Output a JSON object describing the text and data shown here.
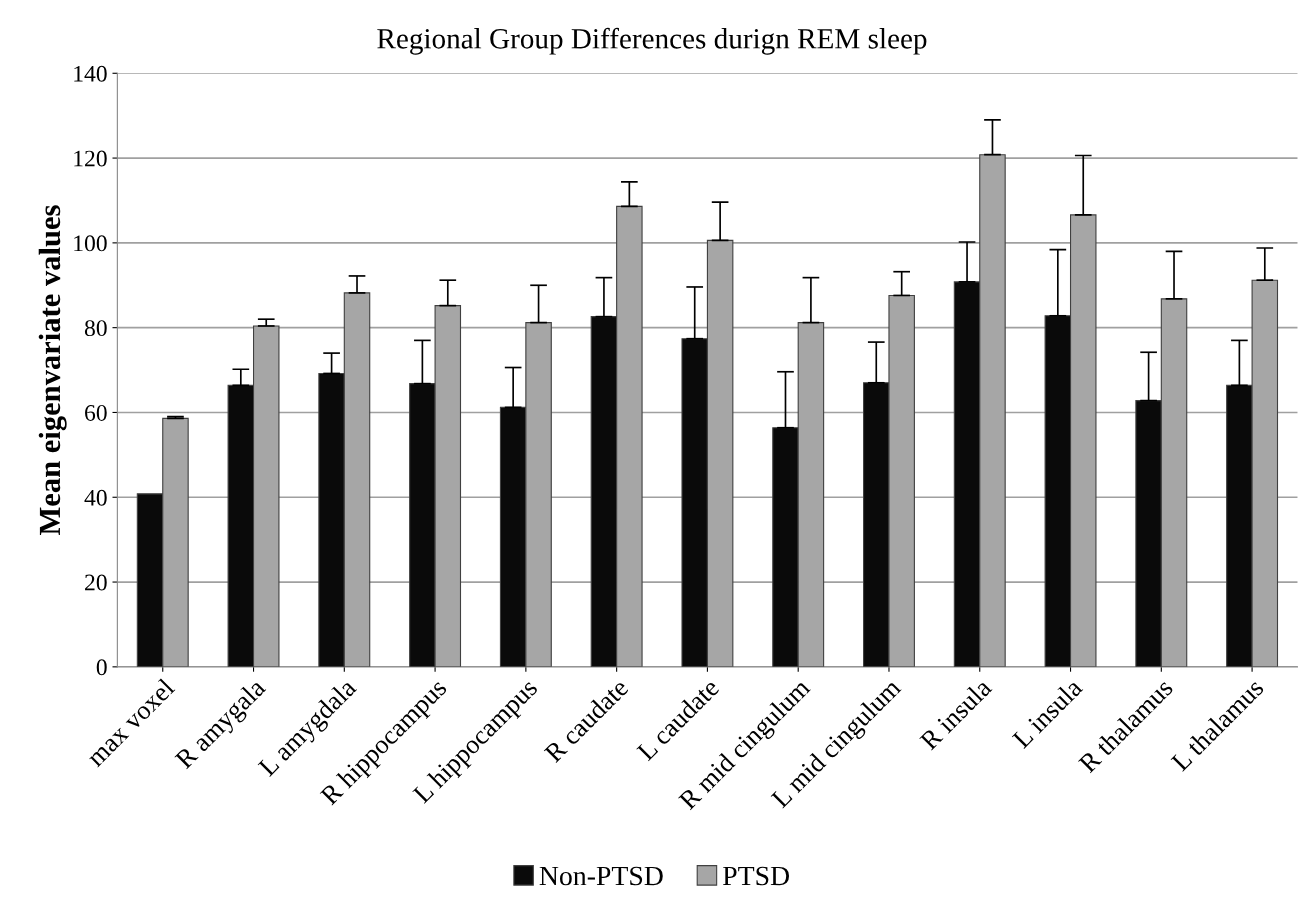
{
  "chart_data": {
    "type": "bar",
    "title": "Regional Group Differences durign REM sleep",
    "ylabel": "Mean eigenvariate values",
    "categories": [
      "max voxel",
      "R amygala",
      "L amygdala",
      "R hippocampus",
      "L hippocampus",
      "R caudate",
      "L caudate",
      "R mid cingulum",
      "L mid cingulum",
      "R insula",
      "L insula",
      "R thalamus",
      "L thalamus"
    ],
    "series": [
      {
        "name": "Non-PTSD",
        "color": "#0a0a0a",
        "values": [
          40.8,
          66.4,
          69.2,
          66.8,
          61.2,
          82.6,
          77.4,
          56.4,
          67.0,
          90.8,
          82.8,
          62.8,
          66.4
        ],
        "errors": [
          null,
          [
            66.4,
            70.2
          ],
          [
            69.2,
            74.0
          ],
          [
            66.8,
            77.0
          ],
          [
            61.2,
            70.6
          ],
          [
            82.6,
            91.8
          ],
          [
            77.4,
            89.6
          ],
          [
            56.4,
            69.6
          ],
          [
            67.0,
            76.6
          ],
          [
            90.8,
            100.2
          ],
          [
            82.8,
            98.4
          ],
          [
            62.8,
            74.2
          ],
          [
            66.4,
            77.0
          ]
        ]
      },
      {
        "name": "PTSD",
        "color": "#a6a6a6",
        "values": [
          58.6,
          80.4,
          88.2,
          85.2,
          81.2,
          108.6,
          100.6,
          81.2,
          87.6,
          120.8,
          106.6,
          86.8,
          91.2
        ],
        "errors": [
          [
            58.6,
            59.0
          ],
          [
            80.4,
            82.0
          ],
          [
            88.2,
            92.2
          ],
          [
            85.2,
            91.2
          ],
          [
            81.2,
            90.0
          ],
          [
            108.6,
            114.4
          ],
          [
            100.6,
            109.6
          ],
          [
            81.2,
            91.8
          ],
          [
            87.6,
            93.2
          ],
          [
            120.8,
            129.0
          ],
          [
            106.6,
            120.6
          ],
          [
            86.8,
            98.0
          ],
          [
            91.2,
            98.8
          ]
        ]
      }
    ],
    "ylim": [
      0,
      140
    ],
    "yticks": [
      0,
      20,
      40,
      60,
      80,
      100,
      120,
      140
    ],
    "grid": "y",
    "legend": "bottom"
  }
}
